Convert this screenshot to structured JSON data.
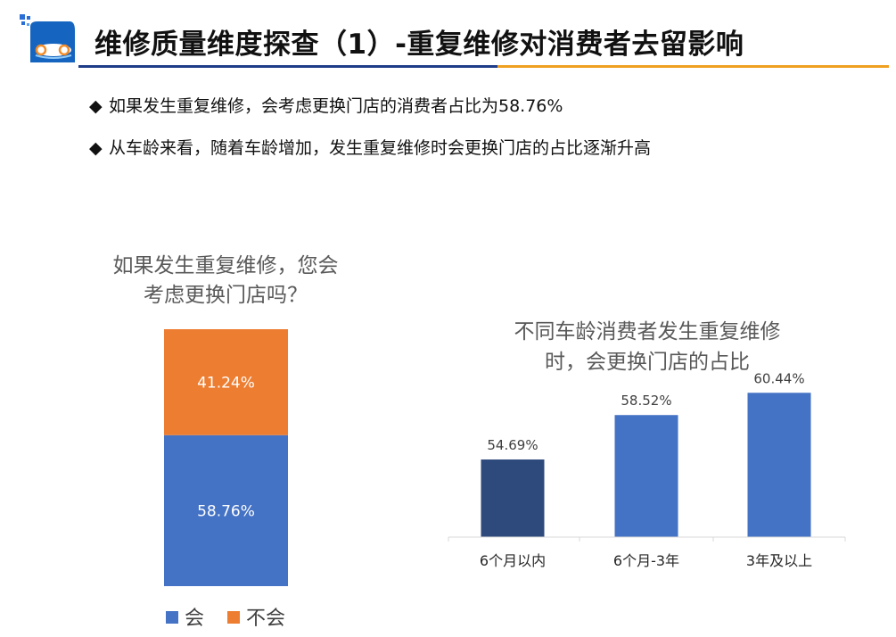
{
  "header": {
    "title": "维修质量维度探查（1）-重复维修对消费者去留影响"
  },
  "bullets": [
    "如果发生重复维修，会考虑更换门店的消费者占比为58.76%",
    "从车龄来看，随着车龄增加，发生重复维修时会更换门店的占比逐渐升高"
  ],
  "bullet_symbol": "◆",
  "chart_data": [
    {
      "type": "bar",
      "stacked": true,
      "title_lines": [
        "如果发生重复维修，您会",
        "考虑更换门店吗？"
      ],
      "categories": [
        ""
      ],
      "series": [
        {
          "name": "会",
          "values": [
            58.76
          ],
          "label": "58.76%",
          "color": "#4472c4"
        },
        {
          "name": "不会",
          "values": [
            41.24
          ],
          "label": "41.24%",
          "color": "#ed7d31"
        }
      ],
      "ylim": [
        0,
        100
      ],
      "legend_position": "bottom"
    },
    {
      "type": "bar",
      "title_lines": [
        "不同车龄消费者发生重复维修",
        "时，会更换门店的占比"
      ],
      "categories": [
        "6个月以内",
        "6个月-3年",
        "3年及以上"
      ],
      "values": [
        54.69,
        58.52,
        60.44
      ],
      "value_labels": [
        "54.69%",
        "58.52%",
        "60.44%"
      ],
      "colors": [
        "#2e4a7d",
        "#4472c4",
        "#4472c4"
      ],
      "ylim": [
        48,
        62
      ]
    }
  ]
}
